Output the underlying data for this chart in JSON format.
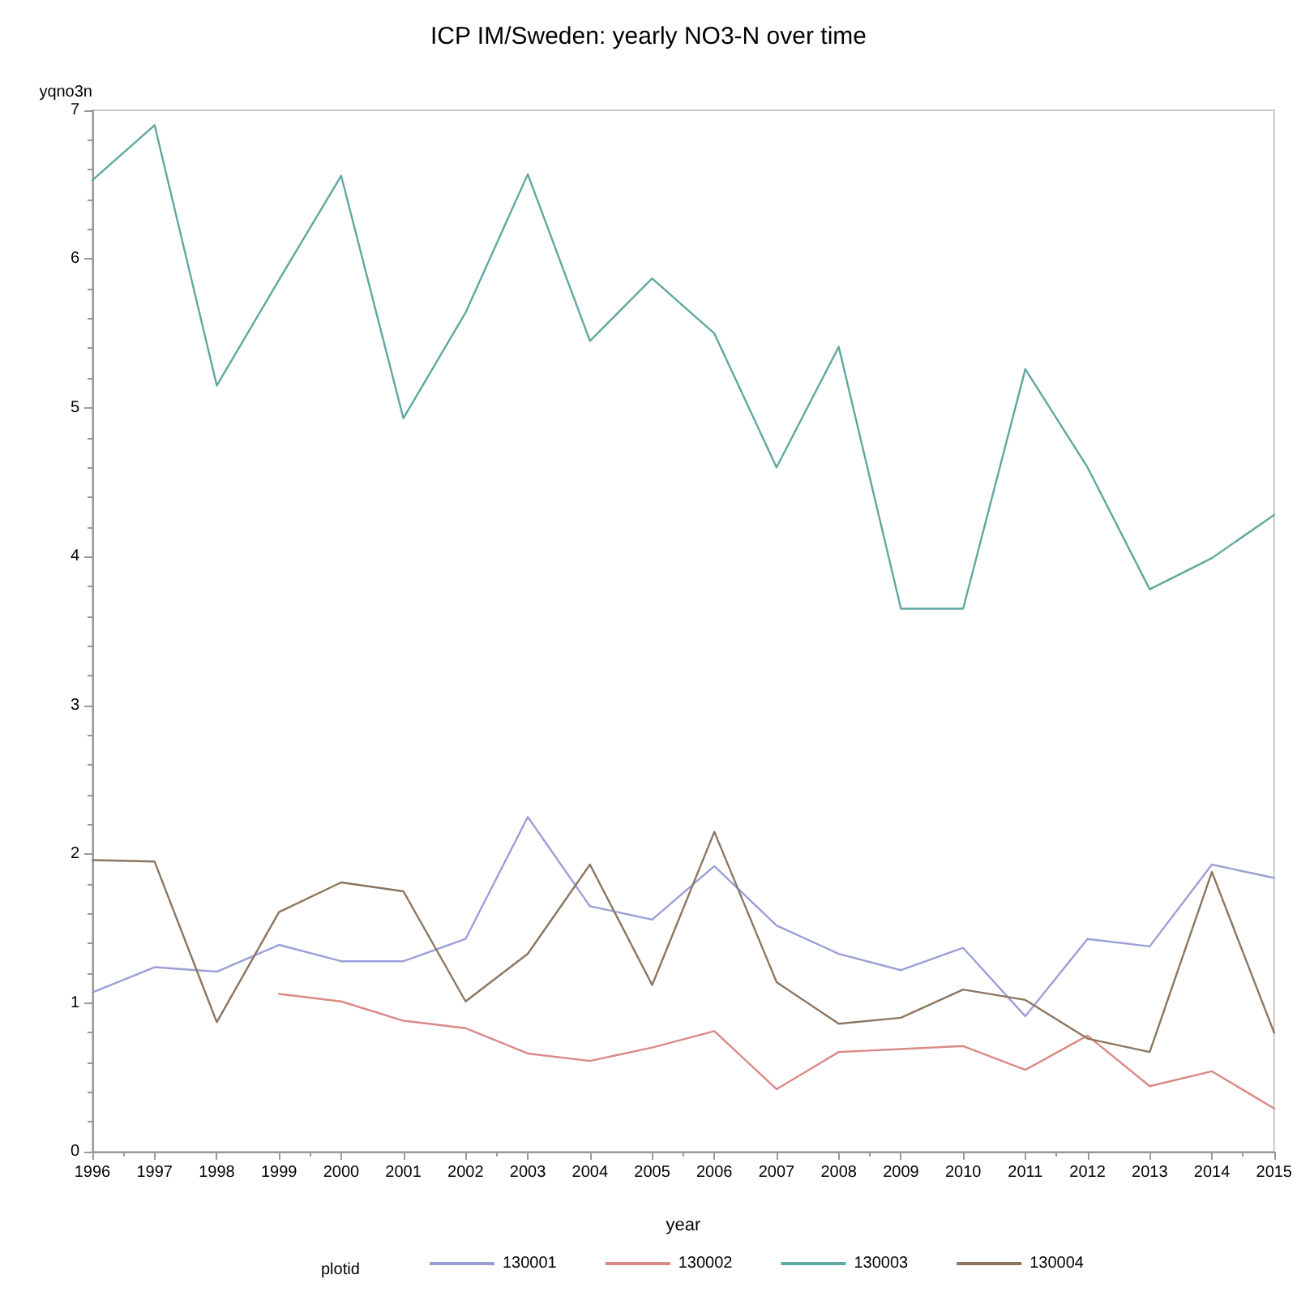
{
  "chart_data": {
    "type": "line",
    "title": "ICP IM/Sweden: yearly NO3-N over time",
    "xlabel": "year",
    "ylabel": "yqno3n",
    "legend_title": "plotid",
    "x": [
      1996,
      1997,
      1998,
      1999,
      2000,
      2001,
      2002,
      2003,
      2004,
      2005,
      2006,
      2007,
      2008,
      2009,
      2010,
      2011,
      2012,
      2013,
      2014,
      2015
    ],
    "series": [
      {
        "name": "130001",
        "color": "#9a9fd8",
        "values": [
          1.07,
          1.24,
          1.21,
          1.39,
          1.28,
          1.28,
          1.43,
          2.25,
          1.65,
          1.56,
          1.92,
          1.52,
          1.33,
          1.22,
          1.37,
          0.91,
          1.43,
          1.38,
          1.93,
          1.84
        ]
      },
      {
        "name": "130002",
        "color": "#d98a86",
        "values": [
          null,
          null,
          null,
          1.06,
          1.01,
          0.88,
          0.83,
          0.66,
          0.61,
          0.7,
          0.81,
          0.42,
          0.67,
          0.69,
          0.71,
          0.55,
          0.78,
          0.44,
          0.54,
          0.29
        ]
      },
      {
        "name": "130003",
        "color": "#5fa8a0",
        "values": [
          6.53,
          6.9,
          5.15,
          5.86,
          6.56,
          4.93,
          5.64,
          6.57,
          5.45,
          5.87,
          5.5,
          4.6,
          5.41,
          3.65,
          3.65,
          5.26,
          4.6,
          3.78,
          3.99,
          4.28
        ]
      },
      {
        "name": "130004",
        "color": "#8c7660",
        "values": [
          1.96,
          1.95,
          0.87,
          1.61,
          1.81,
          1.75,
          1.01,
          1.33,
          1.93,
          1.12,
          2.15,
          1.14,
          0.86,
          0.9,
          1.09,
          1.02,
          0.76,
          0.67,
          1.88,
          0.8
        ]
      }
    ],
    "xlim": [
      1996,
      2015
    ],
    "xticks": [
      1996,
      1997,
      1998,
      1999,
      2000,
      2001,
      2002,
      2003,
      2004,
      2005,
      2006,
      2007,
      2008,
      2009,
      2010,
      2011,
      2012,
      2013,
      2014,
      2015
    ],
    "ylim": [
      0,
      7
    ],
    "yticks": [
      0,
      1,
      2,
      3,
      4,
      5,
      6,
      7
    ],
    "grid": false,
    "legend": "bottom",
    "marker": "none",
    "line_style": "solid"
  }
}
